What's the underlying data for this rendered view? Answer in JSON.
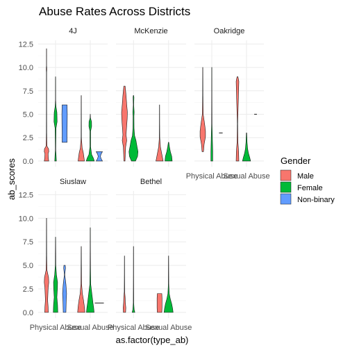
{
  "chart_data": {
    "type": "violin",
    "title": "Abuse Rates Across Districts",
    "xlabel": "as.factor(type_ab)",
    "ylabel": "ab_scores",
    "categories": [
      "Physical Abuse",
      "Sexual Abuse"
    ],
    "y_ticks": [
      0.0,
      2.5,
      5.0,
      7.5,
      10.0,
      12.5
    ],
    "y_tick_labels": [
      "0.0",
      "2.5",
      "5.0",
      "7.5",
      "10.0",
      "12.5"
    ],
    "ylim": [
      -0.6,
      12.9
    ],
    "grid": true,
    "legend": {
      "title": "Gender",
      "position": "right",
      "entries": [
        {
          "name": "Male",
          "color": "#F8766D"
        },
        {
          "name": "Female",
          "color": "#00BA38"
        },
        {
          "name": "Non-binary",
          "color": "#619CFF"
        }
      ]
    },
    "panels": [
      {
        "name": "4J",
        "show_y_axis": true,
        "show_x_axis": false,
        "violins": [
          {
            "category": 0,
            "gender": "Male",
            "min": 0,
            "max": 12,
            "profile": [
              [
                0,
                0.5
              ],
              [
                0.3,
                0.4
              ],
              [
                0.8,
                0.35
              ],
              [
                1.0,
                0.5
              ],
              [
                1.3,
                0.45
              ],
              [
                1.6,
                0.1
              ],
              [
                3,
                0.04
              ],
              [
                6,
                0.03
              ],
              [
                9.5,
                0.03
              ],
              [
                9.8,
                0.07
              ],
              [
                10.2,
                0.02
              ],
              [
                12,
                0.02
              ]
            ]
          },
          {
            "category": 0,
            "gender": "Female",
            "min": 0,
            "max": 9,
            "profile": [
              [
                0,
                0.18
              ],
              [
                0.6,
                0.12
              ],
              [
                1.2,
                0.05
              ],
              [
                3.5,
                0.1
              ],
              [
                4.2,
                0.35
              ],
              [
                5.2,
                0.3
              ],
              [
                5.8,
                0.1
              ],
              [
                6.5,
                0.03
              ],
              [
                9,
                0.02
              ]
            ]
          },
          {
            "category": 0,
            "gender": "Non-binary",
            "min": 2,
            "max": 6,
            "profile": [
              [
                2,
                0.55
              ],
              [
                3,
                0.55
              ],
              [
                4,
                0.58
              ],
              [
                5,
                0.6
              ],
              [
                6,
                0.55
              ]
            ]
          },
          {
            "category": 1,
            "gender": "Male",
            "min": 0,
            "max": 7,
            "profile": [
              [
                0,
                0.7
              ],
              [
                0.4,
                0.6
              ],
              [
                0.9,
                0.45
              ],
              [
                1.4,
                0.2
              ],
              [
                2.5,
                0.04
              ],
              [
                5,
                0.03
              ],
              [
                7,
                0.02
              ]
            ]
          },
          {
            "category": 1,
            "gender": "Female",
            "min": 0,
            "max": 5,
            "profile": [
              [
                0,
                0.9
              ],
              [
                0.3,
                0.7
              ],
              [
                0.7,
                0.3
              ],
              [
                1.5,
                0.08
              ],
              [
                3.2,
                0.08
              ],
              [
                3.7,
                0.3
              ],
              [
                4.2,
                0.28
              ],
              [
                4.6,
                0.05
              ],
              [
                5,
                0.02
              ]
            ]
          },
          {
            "category": 1,
            "gender": "Non-binary",
            "min": 0,
            "max": 1,
            "profile": [
              [
                0,
                0.7
              ],
              [
                0.25,
                0.4
              ],
              [
                0.5,
                0.25
              ],
              [
                0.75,
                0.4
              ],
              [
                1,
                0.7
              ]
            ]
          }
        ]
      },
      {
        "name": "McKenzie",
        "show_y_axis": false,
        "show_x_axis": false,
        "violins": [
          {
            "category": 0,
            "gender": "Male",
            "min": 0,
            "max": 8,
            "profile": [
              [
                0,
                0.12
              ],
              [
                1.5,
                0.25
              ],
              [
                2.2,
                0.5
              ],
              [
                2.8,
                0.35
              ],
              [
                3.5,
                0.45
              ],
              [
                4.5,
                0.6
              ],
              [
                5.2,
                0.65
              ],
              [
                6,
                0.5
              ],
              [
                7,
                0.35
              ],
              [
                8,
                0.15
              ]
            ]
          },
          {
            "category": 0,
            "gender": "Female",
            "min": 0,
            "max": 7,
            "profile": [
              [
                0,
                0.45
              ],
              [
                0.5,
                0.9
              ],
              [
                1,
                1.0
              ],
              [
                1.5,
                0.8
              ],
              [
                2.2,
                0.55
              ],
              [
                2.7,
                0.25
              ],
              [
                3.5,
                0.12
              ],
              [
                4.8,
                0.1
              ],
              [
                5.2,
                0.15
              ],
              [
                6,
                0.05
              ],
              [
                6.8,
                0.1
              ],
              [
                7,
                0.05
              ]
            ]
          },
          {
            "category": 1,
            "gender": "Male",
            "min": 0,
            "max": 6,
            "profile": [
              [
                0,
                0.8
              ],
              [
                0.5,
                0.6
              ],
              [
                1,
                0.4
              ],
              [
                1.5,
                0.2
              ],
              [
                2.5,
                0.05
              ],
              [
                4,
                0.03
              ],
              [
                6,
                0.02
              ]
            ]
          },
          {
            "category": 1,
            "gender": "Female",
            "min": 0,
            "max": 2,
            "profile": [
              [
                0,
                0.8
              ],
              [
                0.5,
                0.7
              ],
              [
                1,
                0.4
              ],
              [
                1.5,
                0.2
              ],
              [
                2,
                0.05
              ]
            ]
          }
        ]
      },
      {
        "name": "Oakridge",
        "show_y_axis": false,
        "show_x_axis": true,
        "violins": [
          {
            "category": 0,
            "gender": "Male",
            "min": 1,
            "max": 10,
            "profile": [
              [
                1,
                0.15
              ],
              [
                1.8,
                0.3
              ],
              [
                2.6,
                0.6
              ],
              [
                3.2,
                0.6
              ],
              [
                4,
                0.4
              ],
              [
                5,
                0.1
              ],
              [
                7,
                0.04
              ],
              [
                10,
                0.02
              ]
            ]
          },
          {
            "category": 0,
            "gender": "Female",
            "min": 0,
            "max": 10,
            "profile": [
              [
                0,
                0.2
              ],
              [
                1,
                0.2
              ],
              [
                2,
                0.15
              ],
              [
                4,
                0.05
              ],
              [
                7,
                0.03
              ],
              [
                10,
                0.02
              ]
            ]
          },
          {
            "category": 0,
            "gender": "Non-binary",
            "min": 3,
            "max": 3,
            "profile": [
              [
                3,
                0.4
              ]
            ]
          },
          {
            "category": 1,
            "gender": "Male",
            "min": 0,
            "max": 9,
            "profile": [
              [
                0,
                0.3
              ],
              [
                1,
                0.25
              ],
              [
                2,
                0.1
              ],
              [
                4,
                0.04
              ],
              [
                8.5,
                0.3
              ],
              [
                9,
                0.1
              ]
            ]
          },
          {
            "category": 1,
            "gender": "Female",
            "min": 0,
            "max": 3,
            "profile": [
              [
                0,
                0.9
              ],
              [
                0.4,
                0.7
              ],
              [
                0.8,
                0.45
              ],
              [
                1.3,
                0.25
              ],
              [
                2,
                0.12
              ],
              [
                3,
                0.05
              ]
            ]
          },
          {
            "category": 1,
            "gender": "Non-binary",
            "min": 5,
            "max": 5,
            "profile": [
              [
                5,
                0.3
              ]
            ]
          }
        ]
      },
      {
        "name": "Siuslaw",
        "show_y_axis": true,
        "show_x_axis": true,
        "violins": [
          {
            "category": 0,
            "gender": "Male",
            "min": 0,
            "max": 10,
            "profile": [
              [
                0,
                0.4
              ],
              [
                0.6,
                0.35
              ],
              [
                1.3,
                0.25
              ],
              [
                2.5,
                0.35
              ],
              [
                3.2,
                0.5
              ],
              [
                3.7,
                0.45
              ],
              [
                4.5,
                0.1
              ],
              [
                6,
                0.04
              ],
              [
                10,
                0.02
              ]
            ]
          },
          {
            "category": 0,
            "gender": "Female",
            "min": 0,
            "max": 8,
            "profile": [
              [
                0,
                0.5
              ],
              [
                0.8,
                0.45
              ],
              [
                1.6,
                0.3
              ],
              [
                2.4,
                0.4
              ],
              [
                3.2,
                0.45
              ],
              [
                4,
                0.2
              ],
              [
                5,
                0.06
              ],
              [
                8,
                0.02
              ]
            ]
          },
          {
            "category": 0,
            "gender": "Non-binary",
            "min": 0,
            "max": 5,
            "profile": [
              [
                0,
                0.3
              ],
              [
                1,
                0.35
              ],
              [
                2,
                0.45
              ],
              [
                3,
                0.3
              ],
              [
                4,
                0.05
              ],
              [
                4.7,
                0.2
              ],
              [
                5,
                0.15
              ]
            ]
          },
          {
            "category": 1,
            "gender": "Male",
            "min": 0,
            "max": 7,
            "profile": [
              [
                0,
                0.8
              ],
              [
                0.6,
                0.7
              ],
              [
                1.3,
                0.5
              ],
              [
                2,
                0.25
              ],
              [
                3,
                0.08
              ],
              [
                5,
                0.04
              ],
              [
                7,
                0.02
              ]
            ]
          },
          {
            "category": 1,
            "gender": "Female",
            "min": 0,
            "max": 9,
            "profile": [
              [
                0,
                0.85
              ],
              [
                0.5,
                0.75
              ],
              [
                1,
                0.6
              ],
              [
                1.6,
                0.45
              ],
              [
                2.2,
                0.3
              ],
              [
                3,
                0.1
              ],
              [
                5,
                0.05
              ],
              [
                7,
                0.03
              ],
              [
                9,
                0.02
              ]
            ]
          },
          {
            "category": 1,
            "gender": "Non-binary",
            "min": 1,
            "max": 1,
            "profile": [
              [
                1,
                1.0
              ]
            ]
          }
        ]
      },
      {
        "name": "Bethel",
        "show_y_axis": false,
        "show_x_axis": true,
        "violins": [
          {
            "category": 0,
            "gender": "Male",
            "min": 0,
            "max": 6,
            "profile": [
              [
                0,
                0.25
              ],
              [
                0.5,
                0.3
              ],
              [
                1,
                0.2
              ],
              [
                1.6,
                0.15
              ],
              [
                2.2,
                0.05
              ],
              [
                4,
                0.03
              ],
              [
                6,
                0.02
              ]
            ]
          },
          {
            "category": 0,
            "gender": "Female",
            "min": 0,
            "max": 7,
            "profile": [
              [
                0,
                0.3
              ],
              [
                0.3,
                0.15
              ],
              [
                1,
                0.05
              ],
              [
                4,
                0.03
              ],
              [
                7,
                0.02
              ]
            ]
          },
          {
            "category": 1,
            "gender": "Male",
            "min": 0,
            "max": 2,
            "profile": [
              [
                0,
                0.5
              ],
              [
                0.5,
                0.55
              ],
              [
                1,
                0.55
              ],
              [
                1.5,
                0.55
              ],
              [
                2,
                0.5
              ]
            ]
          },
          {
            "category": 1,
            "gender": "Female",
            "min": 0,
            "max": 6,
            "profile": [
              [
                0,
                1.0
              ],
              [
                0.4,
                0.9
              ],
              [
                0.9,
                0.7
              ],
              [
                1.4,
                0.4
              ],
              [
                2,
                0.15
              ],
              [
                3,
                0.05
              ],
              [
                6,
                0.02
              ]
            ]
          }
        ]
      }
    ]
  }
}
